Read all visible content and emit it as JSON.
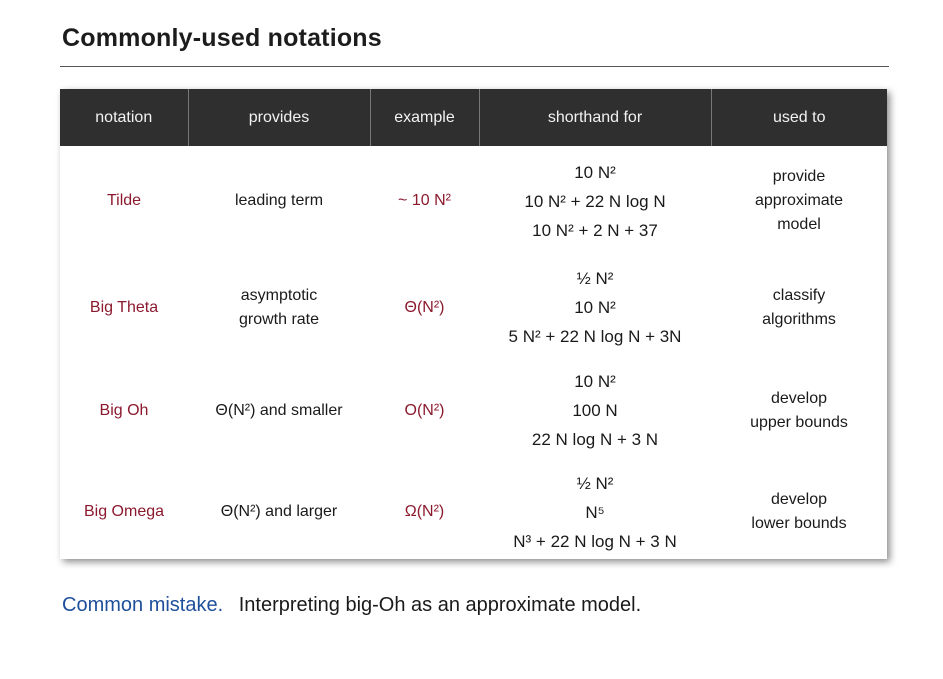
{
  "title": "Commonly-used notations",
  "table": {
    "headers": [
      "notation",
      "provides",
      "example",
      "shorthand for",
      "used to"
    ],
    "rows": [
      {
        "notation": "Tilde",
        "provides": [
          "leading term"
        ],
        "example": "~ 10 N²",
        "shorthand": [
          "10 N²",
          "10 N² + 22 N log N",
          "10 N² + 2 N + 37"
        ],
        "used_to": [
          "provide",
          "approximate",
          "model"
        ]
      },
      {
        "notation": "Big Theta",
        "provides": [
          "asymptotic",
          "growth rate"
        ],
        "example": "Θ(N²)",
        "shorthand": [
          "½ N²",
          "10 N²",
          "5 N² + 22 N log N + 3N"
        ],
        "used_to": [
          "classify",
          "algorithms"
        ]
      },
      {
        "notation": "Big Oh",
        "provides": [
          "Θ(N²) and smaller"
        ],
        "example": "O(N²)",
        "shorthand": [
          "10 N²",
          "100 N",
          "22 N log N + 3 N"
        ],
        "used_to": [
          "develop",
          "upper bounds"
        ]
      },
      {
        "notation": "Big Omega",
        "provides": [
          "Θ(N²) and larger"
        ],
        "example": "Ω(N²)",
        "shorthand": [
          "½ N²",
          "N⁵",
          "N³ + 22 N log N + 3 N"
        ],
        "used_to": [
          "develop",
          "lower bounds"
        ]
      }
    ]
  },
  "note": {
    "lead": "Common mistake.",
    "text": "Interpreting big-Oh as an approximate model."
  },
  "colors": {
    "header_bg": "#2f2f2f",
    "notation_red": "#8b1a2e",
    "note_blue": "#1e4f9b"
  }
}
